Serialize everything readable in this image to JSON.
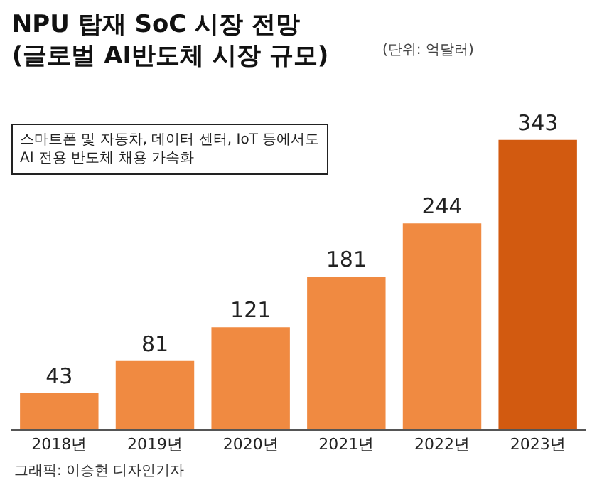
{
  "chart_data": {
    "type": "bar",
    "title": "NPU 탑재 SoC 시장 전망\n(글로벌 AI반도체 시장 규모)",
    "subtitle": "(단위: 억달러)",
    "categories": [
      "2018년",
      "2019년",
      "2020년",
      "2021년",
      "2022년",
      "2023년"
    ],
    "values": [
      43,
      81,
      121,
      181,
      244,
      343
    ],
    "colors": [
      "#f08a41",
      "#f08a41",
      "#f08a41",
      "#f08a41",
      "#f08a41",
      "#d25a10"
    ],
    "data_labels": true,
    "annotations": [
      "스마트폰 및 자동차, 데이터 센터, IoT 등에서도\nAI 전용 반도체 채용 가속화",
      "그래픽: 이승현 디자인기자"
    ]
  }
}
